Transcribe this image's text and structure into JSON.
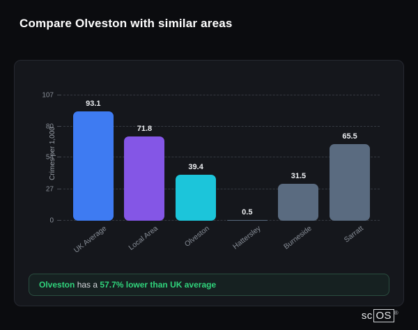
{
  "page": {
    "title": "Compare Olveston with similar areas"
  },
  "chart_data": {
    "type": "bar",
    "title": "",
    "ylabel": "Crimes per 1,000",
    "xlabel": "",
    "categories": [
      "UK Average",
      "Local Area",
      "Olveston",
      "Hattersley",
      "Burneside",
      "Sarratt"
    ],
    "values": [
      93.1,
      71.8,
      39.4,
      0.5,
      31.5,
      65.5
    ],
    "value_labels": [
      "93.1",
      "71.8",
      "39.4",
      "0.5",
      "31.5",
      "65.5"
    ],
    "bar_colors": [
      "#3e7bf2",
      "#8456e6",
      "#1cc5da",
      "#5a6b80",
      "#5a6b80",
      "#5a6b80"
    ],
    "yticks": [
      0,
      27,
      54,
      80,
      107
    ],
    "ylim": [
      0,
      107
    ],
    "grid": "horizontal-dashed",
    "legend": "none"
  },
  "callout": {
    "area_name": "Olveston",
    "middle_text": " has a ",
    "highlight_text": "57.7% lower than UK average",
    "accent_color": "#30d47c"
  },
  "logo": {
    "prefix": "sc",
    "boxed": "OS",
    "registered": "®"
  }
}
